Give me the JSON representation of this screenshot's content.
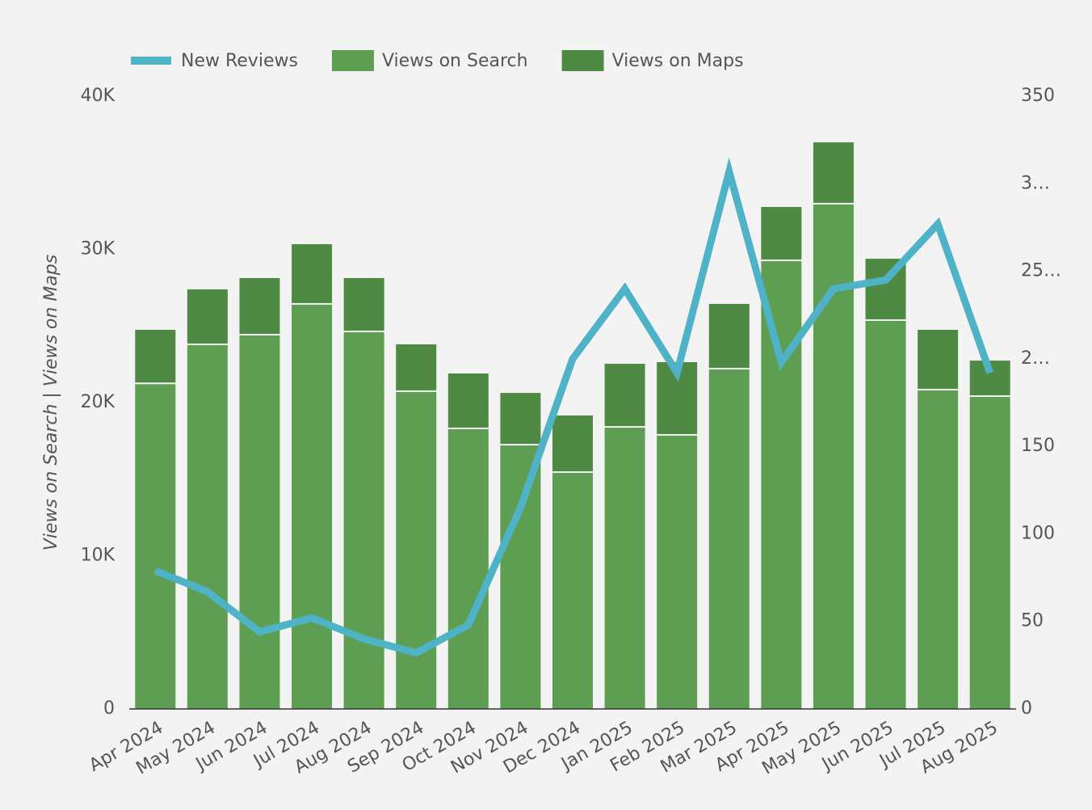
{
  "chart_data": {
    "type": "bar",
    "stacked": true,
    "y_label": "Views on Search | Views on Maps",
    "categories": [
      "Apr 2024",
      "May 2024",
      "Jun 2024",
      "Jul 2024",
      "Aug 2024",
      "Sep 2024",
      "Oct 2024",
      "Nov 2024",
      "Dec 2024",
      "Jan 2025",
      "Feb 2025",
      "Mar 2025",
      "Apr 2025",
      "May 2025",
      "Jun 2025",
      "Jul 2025",
      "Aug 2025"
    ],
    "series": [
      {
        "name": "New Reviews",
        "type": "line",
        "axis": "y2",
        "color": "#4fb3c8",
        "values": [
          79,
          67,
          44,
          52,
          40,
          32,
          48,
          115,
          200,
          240,
          192,
          307,
          198,
          240,
          245,
          277,
          192
        ]
      },
      {
        "name": "Views on Search",
        "type": "bar",
        "color": "#5e9e52",
        "values": [
          21200,
          23750,
          24380,
          26390,
          24590,
          20690,
          18260,
          17200,
          15410,
          18360,
          17840,
          22160,
          29230,
          32930,
          25330,
          20790,
          20370
        ]
      },
      {
        "name": "Views on Maps",
        "type": "bar",
        "color": "#4f8a44",
        "values": [
          3550,
          3640,
          3750,
          3950,
          3540,
          3110,
          3640,
          3430,
          3750,
          4170,
          4800,
          4280,
          3540,
          4060,
          4060,
          3960,
          2370
        ]
      }
    ],
    "ylim": [
      0,
      40000
    ],
    "yticks": [
      0,
      {
        "value": 10000,
        "label": "10K"
      },
      {
        "value": 20000,
        "label": "20K"
      },
      {
        "value": 30000,
        "label": "30K"
      },
      {
        "value": 40000,
        "label": "40K"
      }
    ],
    "y2lim": [
      0,
      350
    ],
    "y2ticks": [
      0,
      50,
      100,
      150,
      {
        "value": 200,
        "label": "2…"
      },
      {
        "value": 250,
        "label": "25…"
      },
      {
        "value": 300,
        "label": "3…"
      },
      350
    ],
    "legend": "top"
  }
}
